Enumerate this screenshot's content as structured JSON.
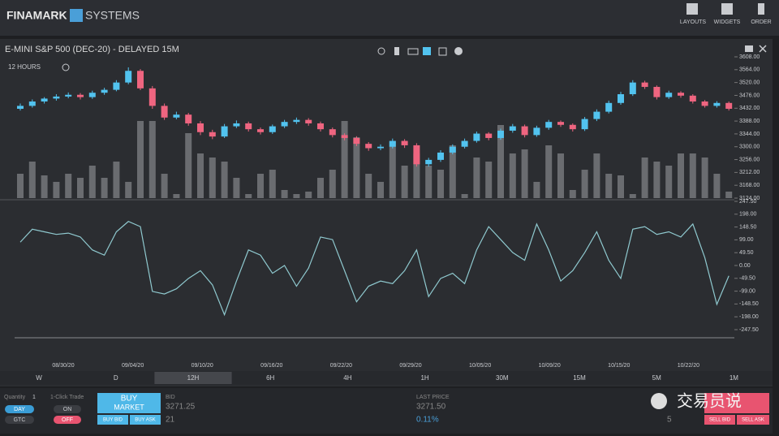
{
  "header": {
    "brand": "FINAMARK",
    "brand2": "SYSTEMS",
    "nav": [
      "LAYOUTS",
      "WIDGETS",
      "ORDER"
    ]
  },
  "panel": {
    "title": "E-MINI S&P 500 (DEC-20) - DELAYED 15M",
    "interval": "12 HOURS"
  },
  "chart_data": [
    {
      "type": "candlestick",
      "colors": {
        "up": "#52c3ef",
        "down": "#ef6580",
        "volume": "#6a6c70"
      },
      "ylim": [
        3124,
        3608
      ],
      "yticks": [
        {
          "value": 3608,
          "label": "3608.00"
        },
        {
          "value": 3564,
          "label": "3564.00"
        },
        {
          "value": 3520,
          "label": "3520.00"
        },
        {
          "value": 3476,
          "label": "3476.00"
        },
        {
          "value": 3432,
          "label": "3432.00"
        },
        {
          "value": 3388,
          "label": "3388.00"
        },
        {
          "value": 3344,
          "label": "3344.00"
        },
        {
          "value": 3300,
          "label": "3300.00"
        },
        {
          "value": 3256,
          "label": "3256.00"
        },
        {
          "value": 3212,
          "label": "3212.00"
        },
        {
          "value": 3168,
          "label": "3168.00"
        },
        {
          "value": 3124,
          "label": "3124.00"
        }
      ],
      "volume_lim": [
        0,
        100
      ],
      "candles": [
        [
          3430,
          3448,
          3424,
          3440
        ],
        [
          3440,
          3462,
          3434,
          3455
        ],
        [
          3455,
          3470,
          3448,
          3465
        ],
        [
          3465,
          3480,
          3458,
          3472
        ],
        [
          3472,
          3486,
          3466,
          3478
        ],
        [
          3478,
          3484,
          3462,
          3470
        ],
        [
          3470,
          3492,
          3464,
          3485
        ],
        [
          3485,
          3502,
          3478,
          3495
        ],
        [
          3495,
          3528,
          3490,
          3520
        ],
        [
          3520,
          3572,
          3514,
          3560
        ],
        [
          3560,
          3566,
          3494,
          3500
        ],
        [
          3500,
          3508,
          3430,
          3440
        ],
        [
          3440,
          3448,
          3392,
          3400
        ],
        [
          3400,
          3420,
          3394,
          3410
        ],
        [
          3410,
          3416,
          3372,
          3380
        ],
        [
          3380,
          3388,
          3340,
          3350
        ],
        [
          3350,
          3358,
          3326,
          3335
        ],
        [
          3335,
          3378,
          3330,
          3370
        ],
        [
          3370,
          3390,
          3364,
          3380
        ],
        [
          3380,
          3386,
          3352,
          3360
        ],
        [
          3360,
          3366,
          3342,
          3350
        ],
        [
          3350,
          3376,
          3344,
          3370
        ],
        [
          3370,
          3392,
          3364,
          3385
        ],
        [
          3385,
          3400,
          3378,
          3392
        ],
        [
          3392,
          3398,
          3372,
          3380
        ],
        [
          3380,
          3386,
          3352,
          3360
        ],
        [
          3360,
          3366,
          3332,
          3340
        ],
        [
          3340,
          3346,
          3322,
          3330
        ],
        [
          3330,
          3336,
          3302,
          3310
        ],
        [
          3310,
          3316,
          3286,
          3295
        ],
        [
          3295,
          3308,
          3288,
          3300
        ],
        [
          3300,
          3328,
          3294,
          3320
        ],
        [
          3320,
          3326,
          3296,
          3305
        ],
        [
          3305,
          3312,
          3232,
          3240
        ],
        [
          3240,
          3262,
          3232,
          3255
        ],
        [
          3255,
          3288,
          3248,
          3280
        ],
        [
          3280,
          3308,
          3274,
          3300
        ],
        [
          3300,
          3328,
          3294,
          3320
        ],
        [
          3320,
          3352,
          3314,
          3345
        ],
        [
          3345,
          3350,
          3322,
          3330
        ],
        [
          3330,
          3362,
          3324,
          3355
        ],
        [
          3355,
          3378,
          3348,
          3370
        ],
        [
          3370,
          3376,
          3332,
          3340
        ],
        [
          3340,
          3372,
          3334,
          3365
        ],
        [
          3365,
          3392,
          3358,
          3385
        ],
        [
          3385,
          3390,
          3368,
          3375
        ],
        [
          3375,
          3380,
          3352,
          3360
        ],
        [
          3360,
          3402,
          3354,
          3395
        ],
        [
          3395,
          3428,
          3388,
          3420
        ],
        [
          3420,
          3458,
          3414,
          3450
        ],
        [
          3450,
          3488,
          3444,
          3480
        ],
        [
          3480,
          3528,
          3474,
          3520
        ],
        [
          3520,
          3526,
          3498,
          3505
        ],
        [
          3505,
          3510,
          3462,
          3470
        ],
        [
          3470,
          3492,
          3464,
          3485
        ],
        [
          3485,
          3490,
          3468,
          3475
        ],
        [
          3475,
          3480,
          3448,
          3455
        ],
        [
          3455,
          3460,
          3434,
          3440
        ],
        [
          3440,
          3456,
          3434,
          3450
        ],
        [
          3450,
          3455,
          3424,
          3430
        ]
      ],
      "volume": [
        30,
        45,
        28,
        20,
        30,
        25,
        40,
        25,
        45,
        20,
        95,
        95,
        30,
        5,
        80,
        55,
        50,
        45,
        25,
        5,
        30,
        35,
        10,
        5,
        8,
        25,
        35,
        95,
        75,
        30,
        20,
        70,
        40,
        55,
        40,
        35,
        65,
        5,
        50,
        45,
        90,
        55,
        60,
        20,
        65,
        55,
        10,
        35,
        55,
        30,
        28,
        5,
        50,
        45,
        40,
        55,
        55,
        50,
        30,
        8
      ],
      "dates": [
        "08/30/20",
        "09/04/20",
        "09/10/20",
        "09/16/20",
        "09/22/20",
        "09/29/20",
        "10/05/20",
        "10/09/20",
        "10/15/20",
        "10/22/20"
      ]
    },
    {
      "type": "line",
      "color": "#8fc9cf",
      "ylim": [
        -247.5,
        247.5
      ],
      "yticks": [
        {
          "value": 247.5,
          "label": "247.50"
        },
        {
          "value": 198,
          "label": "198.00"
        },
        {
          "value": 148.5,
          "label": "148.50"
        },
        {
          "value": 99,
          "label": "99.00"
        },
        {
          "value": 49.5,
          "label": "49.50"
        },
        {
          "value": 0,
          "label": "0.00"
        },
        {
          "value": -49.5,
          "label": "-49.50"
        },
        {
          "value": -99,
          "label": "-99.00"
        },
        {
          "value": -148.5,
          "label": "-148.50"
        },
        {
          "value": -198,
          "label": "-198.00"
        },
        {
          "value": -247.5,
          "label": "-247.50"
        }
      ],
      "values": [
        90,
        140,
        130,
        120,
        125,
        110,
        60,
        40,
        130,
        170,
        150,
        -100,
        -110,
        -90,
        -50,
        -20,
        -75,
        -190,
        -60,
        60,
        40,
        -30,
        0,
        -80,
        -10,
        110,
        100,
        -20,
        -140,
        -80,
        -60,
        -70,
        -20,
        60,
        -120,
        -50,
        -30,
        -70,
        60,
        150,
        100,
        50,
        20,
        160,
        60,
        -60,
        -20,
        50,
        130,
        20,
        -50,
        140,
        150,
        120,
        130,
        110,
        160,
        30,
        -150,
        -40
      ]
    }
  ],
  "timeframes": {
    "options": [
      "W",
      "D",
      "12H",
      "6H",
      "4H",
      "1H",
      "30M",
      "15M",
      "5M",
      "1M"
    ],
    "selected_index": 2
  },
  "order": {
    "quantity_label": "Quantity",
    "quantity": "1",
    "one_click": "1-Click Trade",
    "day": "DAY",
    "gtc": "GTC",
    "on": "ON",
    "off": "OFF",
    "buy": "BUY",
    "market": "MARKET",
    "buy_bid": "BUY BID",
    "buy_ask": "BUY ASK",
    "bid_label": "BID",
    "bid": "3271.25",
    "bid_size": "21",
    "last_label": "LAST PRICE",
    "last": "3271.50",
    "change": "0.11%",
    "ask_size": "5",
    "sell_bid": "SELL BID",
    "sell_ask": "SELL ASK"
  },
  "watermark": "交易员说"
}
